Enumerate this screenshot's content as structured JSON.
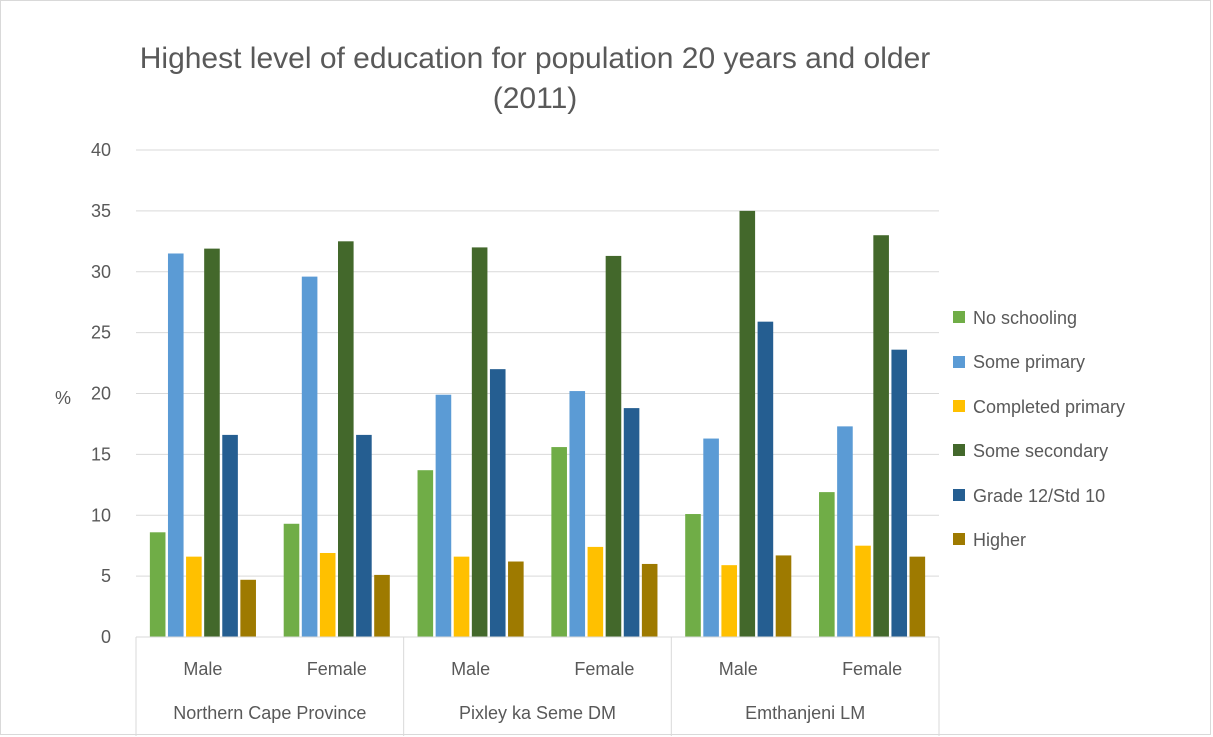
{
  "chart_data": {
    "type": "bar",
    "title_lines": [
      "Highest level of education for population 20 years and older",
      "(2011)"
    ],
    "ylabel": "%",
    "ylim": [
      0,
      40
    ],
    "yticks": [
      0,
      5,
      10,
      15,
      20,
      25,
      30,
      35,
      40
    ],
    "grid": true,
    "legend_position": "right",
    "groups": [
      {
        "name": "Northern Cape Province",
        "categories": [
          "Male",
          "Female"
        ]
      },
      {
        "name": "Pixley ka Seme DM",
        "categories": [
          "Male",
          "Female"
        ]
      },
      {
        "name": "Emthanjeni LM",
        "categories": [
          "Male",
          "Female"
        ]
      }
    ],
    "series": [
      {
        "name": "No schooling",
        "color": "#70ad47",
        "values": [
          8.6,
          9.3,
          13.7,
          15.6,
          10.1,
          11.9
        ]
      },
      {
        "name": "Some primary",
        "color": "#5b9bd5",
        "values": [
          31.5,
          29.6,
          19.9,
          20.2,
          16.3,
          17.3
        ]
      },
      {
        "name": "Completed primary",
        "color": "#ffc000",
        "values": [
          6.6,
          6.9,
          6.6,
          7.4,
          5.9,
          7.5
        ]
      },
      {
        "name": "Some secondary",
        "color": "#43682b",
        "values": [
          31.9,
          32.5,
          32.0,
          31.3,
          35.0,
          33.0
        ]
      },
      {
        "name": "Grade 12/Std 10",
        "color": "#255e91",
        "values": [
          16.6,
          16.6,
          22.0,
          18.8,
          25.9,
          23.6
        ]
      },
      {
        "name": "Higher",
        "color": "#9e7a00",
        "values": [
          4.7,
          5.1,
          6.2,
          6.0,
          6.7,
          6.6
        ]
      }
    ]
  }
}
